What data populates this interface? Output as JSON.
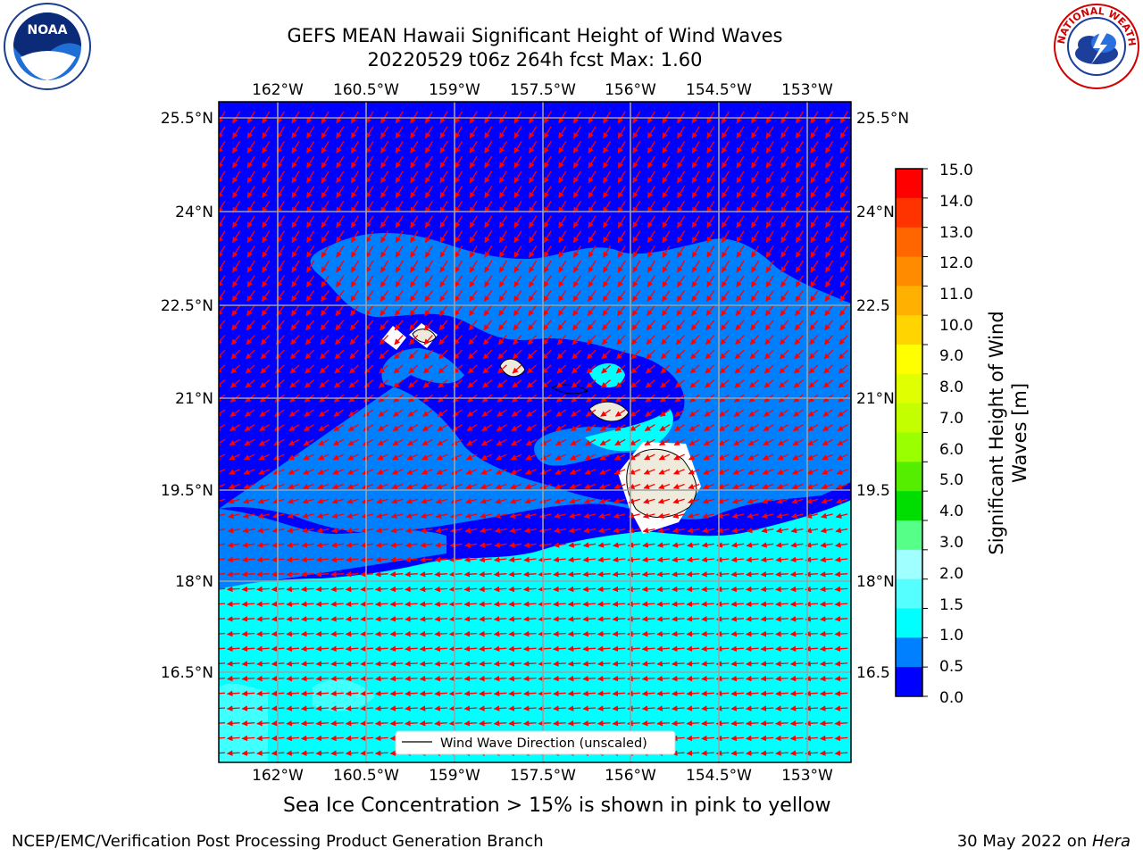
{
  "title": {
    "line1": "GEFS MEAN Hawaii Significant Height of Wind Waves",
    "line2": "20220529 t06z 264h fcst   Max: 1.60"
  },
  "map": {
    "lon_labels": [
      "162°W",
      "160.5°W",
      "159°W",
      "157.5°W",
      "156°W",
      "154.5°W",
      "153°W"
    ],
    "lat_labels_left": [
      "25.5°N",
      "24°N",
      "22.5°N",
      "21°N",
      "19.5°N",
      "18°N",
      "16.5°N"
    ],
    "lat_labels_right": [
      "25.5°N",
      "24°N",
      "22.5",
      "21°N",
      "19.5",
      "18°N",
      "16.5"
    ],
    "legend_label": "Wind Wave Direction (unscaled)",
    "colors": {
      "band_0_05": "#0000ff",
      "band_05_1": "#0080ff",
      "band_1_15": "#00ffff",
      "band_15_2": "#40ffff",
      "land": "#efebdc",
      "arrow": "#ff0000",
      "grid": "#a0a0a0"
    }
  },
  "colorbar": {
    "label_line1": "Significant Height of Wind",
    "label_line2": "Waves [m]",
    "ticks": [
      "15.0",
      "14.0",
      "13.0",
      "12.0",
      "11.0",
      "10.0",
      "9.0",
      "8.0",
      "7.0",
      "6.0",
      "5.0",
      "4.0",
      "3.0",
      "2.0",
      "1.5",
      "1.0",
      "0.5",
      "0.0"
    ],
    "colors_top_to_bottom": [
      "#ff0000",
      "#ff3300",
      "#ff6600",
      "#ff8c00",
      "#ffb000",
      "#ffd400",
      "#ffff00",
      "#e0ff00",
      "#c4ff00",
      "#9aff00",
      "#55ee00",
      "#00dd00",
      "#55ff88",
      "#a0ffff",
      "#55ffff",
      "#00ffff",
      "#0080ff",
      "#0000ff"
    ]
  },
  "sea_ice_note": "Sea Ice Concentration > 15% is shown in pink to yellow",
  "footer": {
    "left": "NCEP/EMC/Verification Post Processing Product Generation Branch",
    "right_prefix": "30 May 2022 on ",
    "right_host": "Hera"
  },
  "logos": {
    "noara_text": "NOAA",
    "nws_text": "NATIONAL WEATHER SERVICE"
  }
}
